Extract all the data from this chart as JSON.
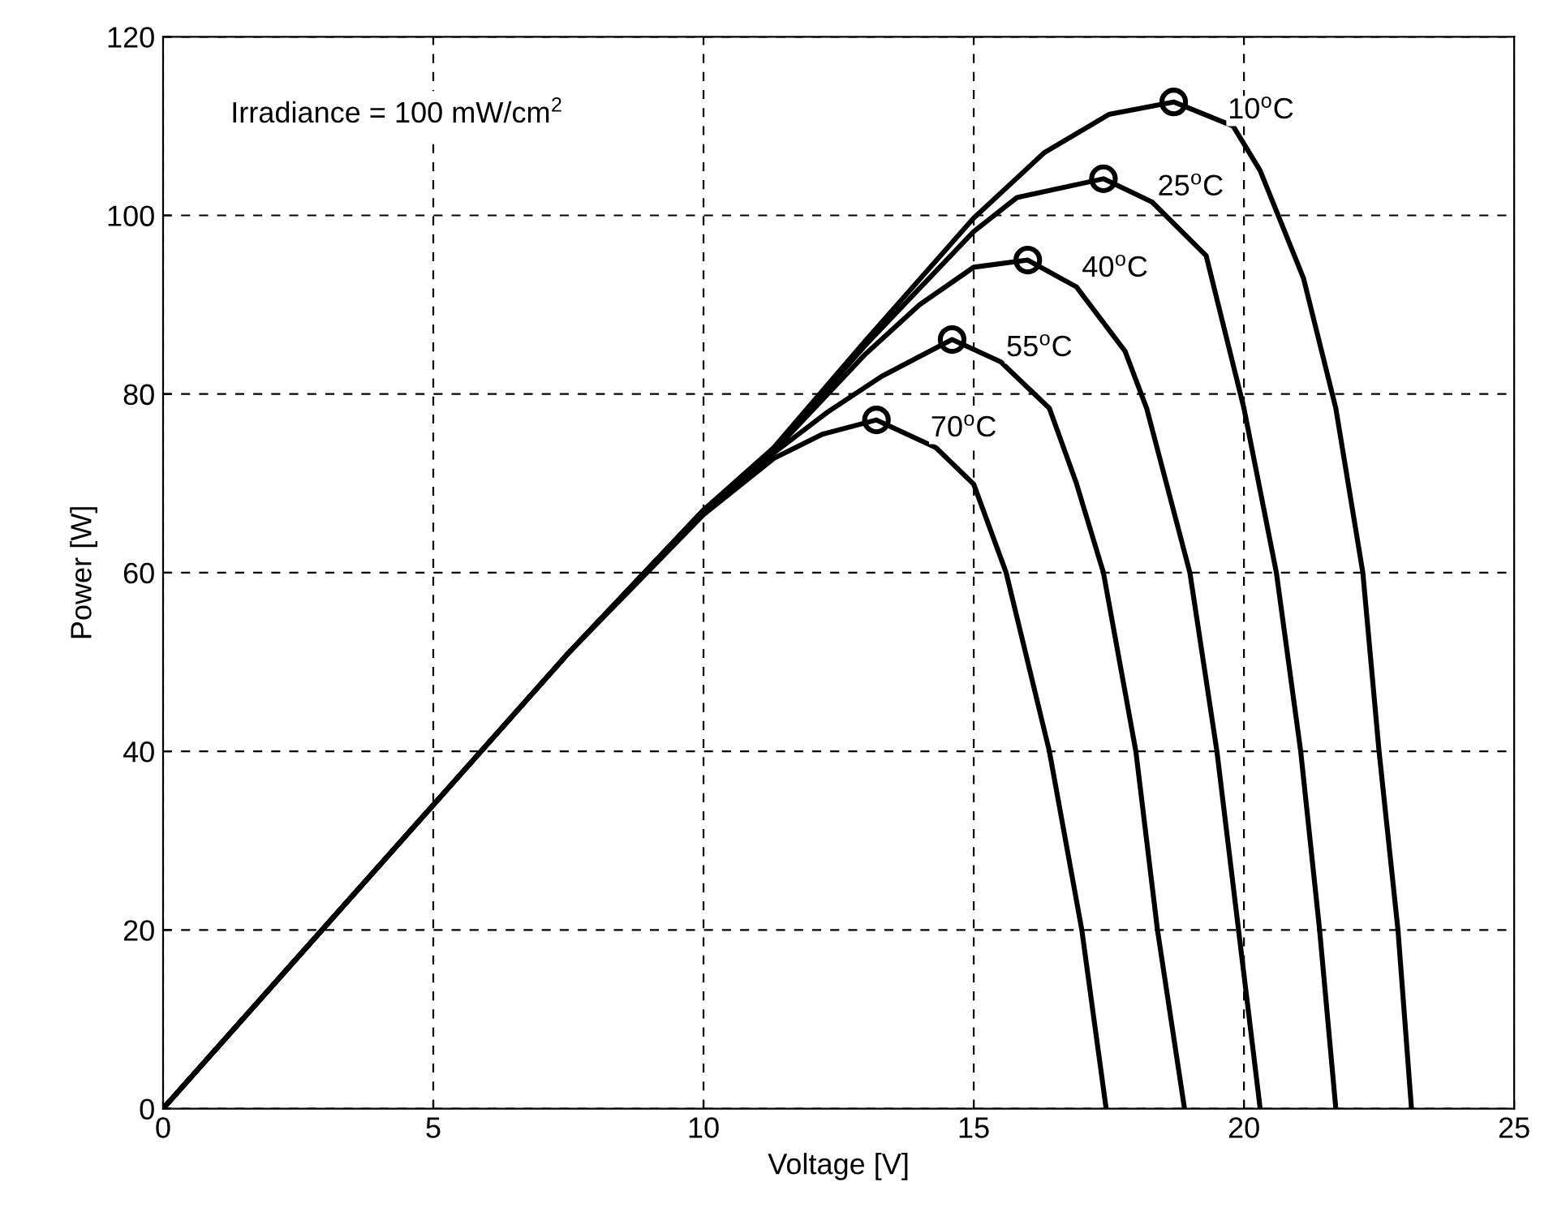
{
  "chart_data": {
    "type": "line",
    "xlabel": "Voltage [V]",
    "ylabel": "Power [W]",
    "xlim": [
      0,
      25
    ],
    "ylim": [
      0,
      120
    ],
    "xticks": [
      0,
      5,
      10,
      15,
      20,
      25
    ],
    "yticks": [
      0,
      20,
      40,
      60,
      80,
      100,
      120
    ],
    "grid": true,
    "legend": false,
    "line_style": "solid",
    "annotations": [
      "Irradiance = 100 mW/cm$^{2}$"
    ],
    "series": [
      {
        "name": "10$^{o}$C",
        "color": "#000000",
        "x": [
          0,
          2.5,
          5,
          7.5,
          10,
          11.3,
          13,
          15,
          16.3,
          17.5,
          18.7,
          19.8,
          20.3,
          21.1,
          21.7,
          22.2,
          22.5,
          22.85,
          23.1
        ],
        "values": [
          0,
          17,
          34,
          51,
          67,
          74,
          86,
          99.7,
          107,
          111.3,
          112.7,
          110,
          105,
          93,
          78.4,
          60,
          40,
          20,
          0
        ]
      },
      {
        "name": "25$^{o}$C",
        "color": "#000000",
        "x": [
          0,
          2.5,
          5,
          7.5,
          10,
          11.3,
          13,
          15,
          15.8,
          17.4,
          18.3,
          19.3,
          20.0,
          20.6,
          21.05,
          21.4,
          21.7
        ],
        "values": [
          0,
          17,
          34,
          51,
          67,
          73.8,
          85.5,
          98.2,
          102,
          104.1,
          101.5,
          95.5,
          78.4,
          60,
          40,
          20,
          0
        ]
      },
      {
        "name": "40$^{o}$C",
        "color": "#000000",
        "x": [
          0,
          2.5,
          5,
          7.5,
          10,
          11.3,
          13,
          14,
          15,
          16.0,
          16.9,
          17.8,
          18.2,
          19.0,
          19.5,
          19.9,
          20.3
        ],
        "values": [
          0,
          17,
          34,
          51,
          67,
          73.6,
          84.5,
          90,
          94.2,
          95.0,
          92,
          84.8,
          78.4,
          60,
          40,
          20,
          0
        ]
      },
      {
        "name": "55$^{o}$C",
        "color": "#000000",
        "x": [
          0,
          2.5,
          5,
          7.5,
          10,
          11.3,
          12.3,
          13.3,
          14.6,
          15.5,
          16.4,
          16.9,
          17.4,
          18.0,
          18.4,
          18.9
        ],
        "values": [
          0,
          17,
          34,
          51,
          67,
          73.4,
          78,
          82,
          86.1,
          83.6,
          78.4,
          70,
          60,
          40,
          20,
          0
        ]
      },
      {
        "name": "70$^{o}$C",
        "color": "#000000",
        "x": [
          0,
          2.5,
          5,
          7.5,
          10,
          11.3,
          12.2,
          13.2,
          14.3,
          15.0,
          15.6,
          16.4,
          17.0,
          17.45
        ],
        "values": [
          0,
          17,
          34,
          51,
          66.5,
          72.8,
          75.5,
          77.1,
          74,
          69.9,
          60,
          40,
          20,
          0
        ]
      },
      {
        "type": "scatter",
        "marker": "circle",
        "color": "#000000",
        "x": [
          18.7,
          17.4,
          16.0,
          14.6,
          13.2
        ],
        "values": [
          112.7,
          104.1,
          95.0,
          86.1,
          77.1
        ]
      }
    ]
  }
}
